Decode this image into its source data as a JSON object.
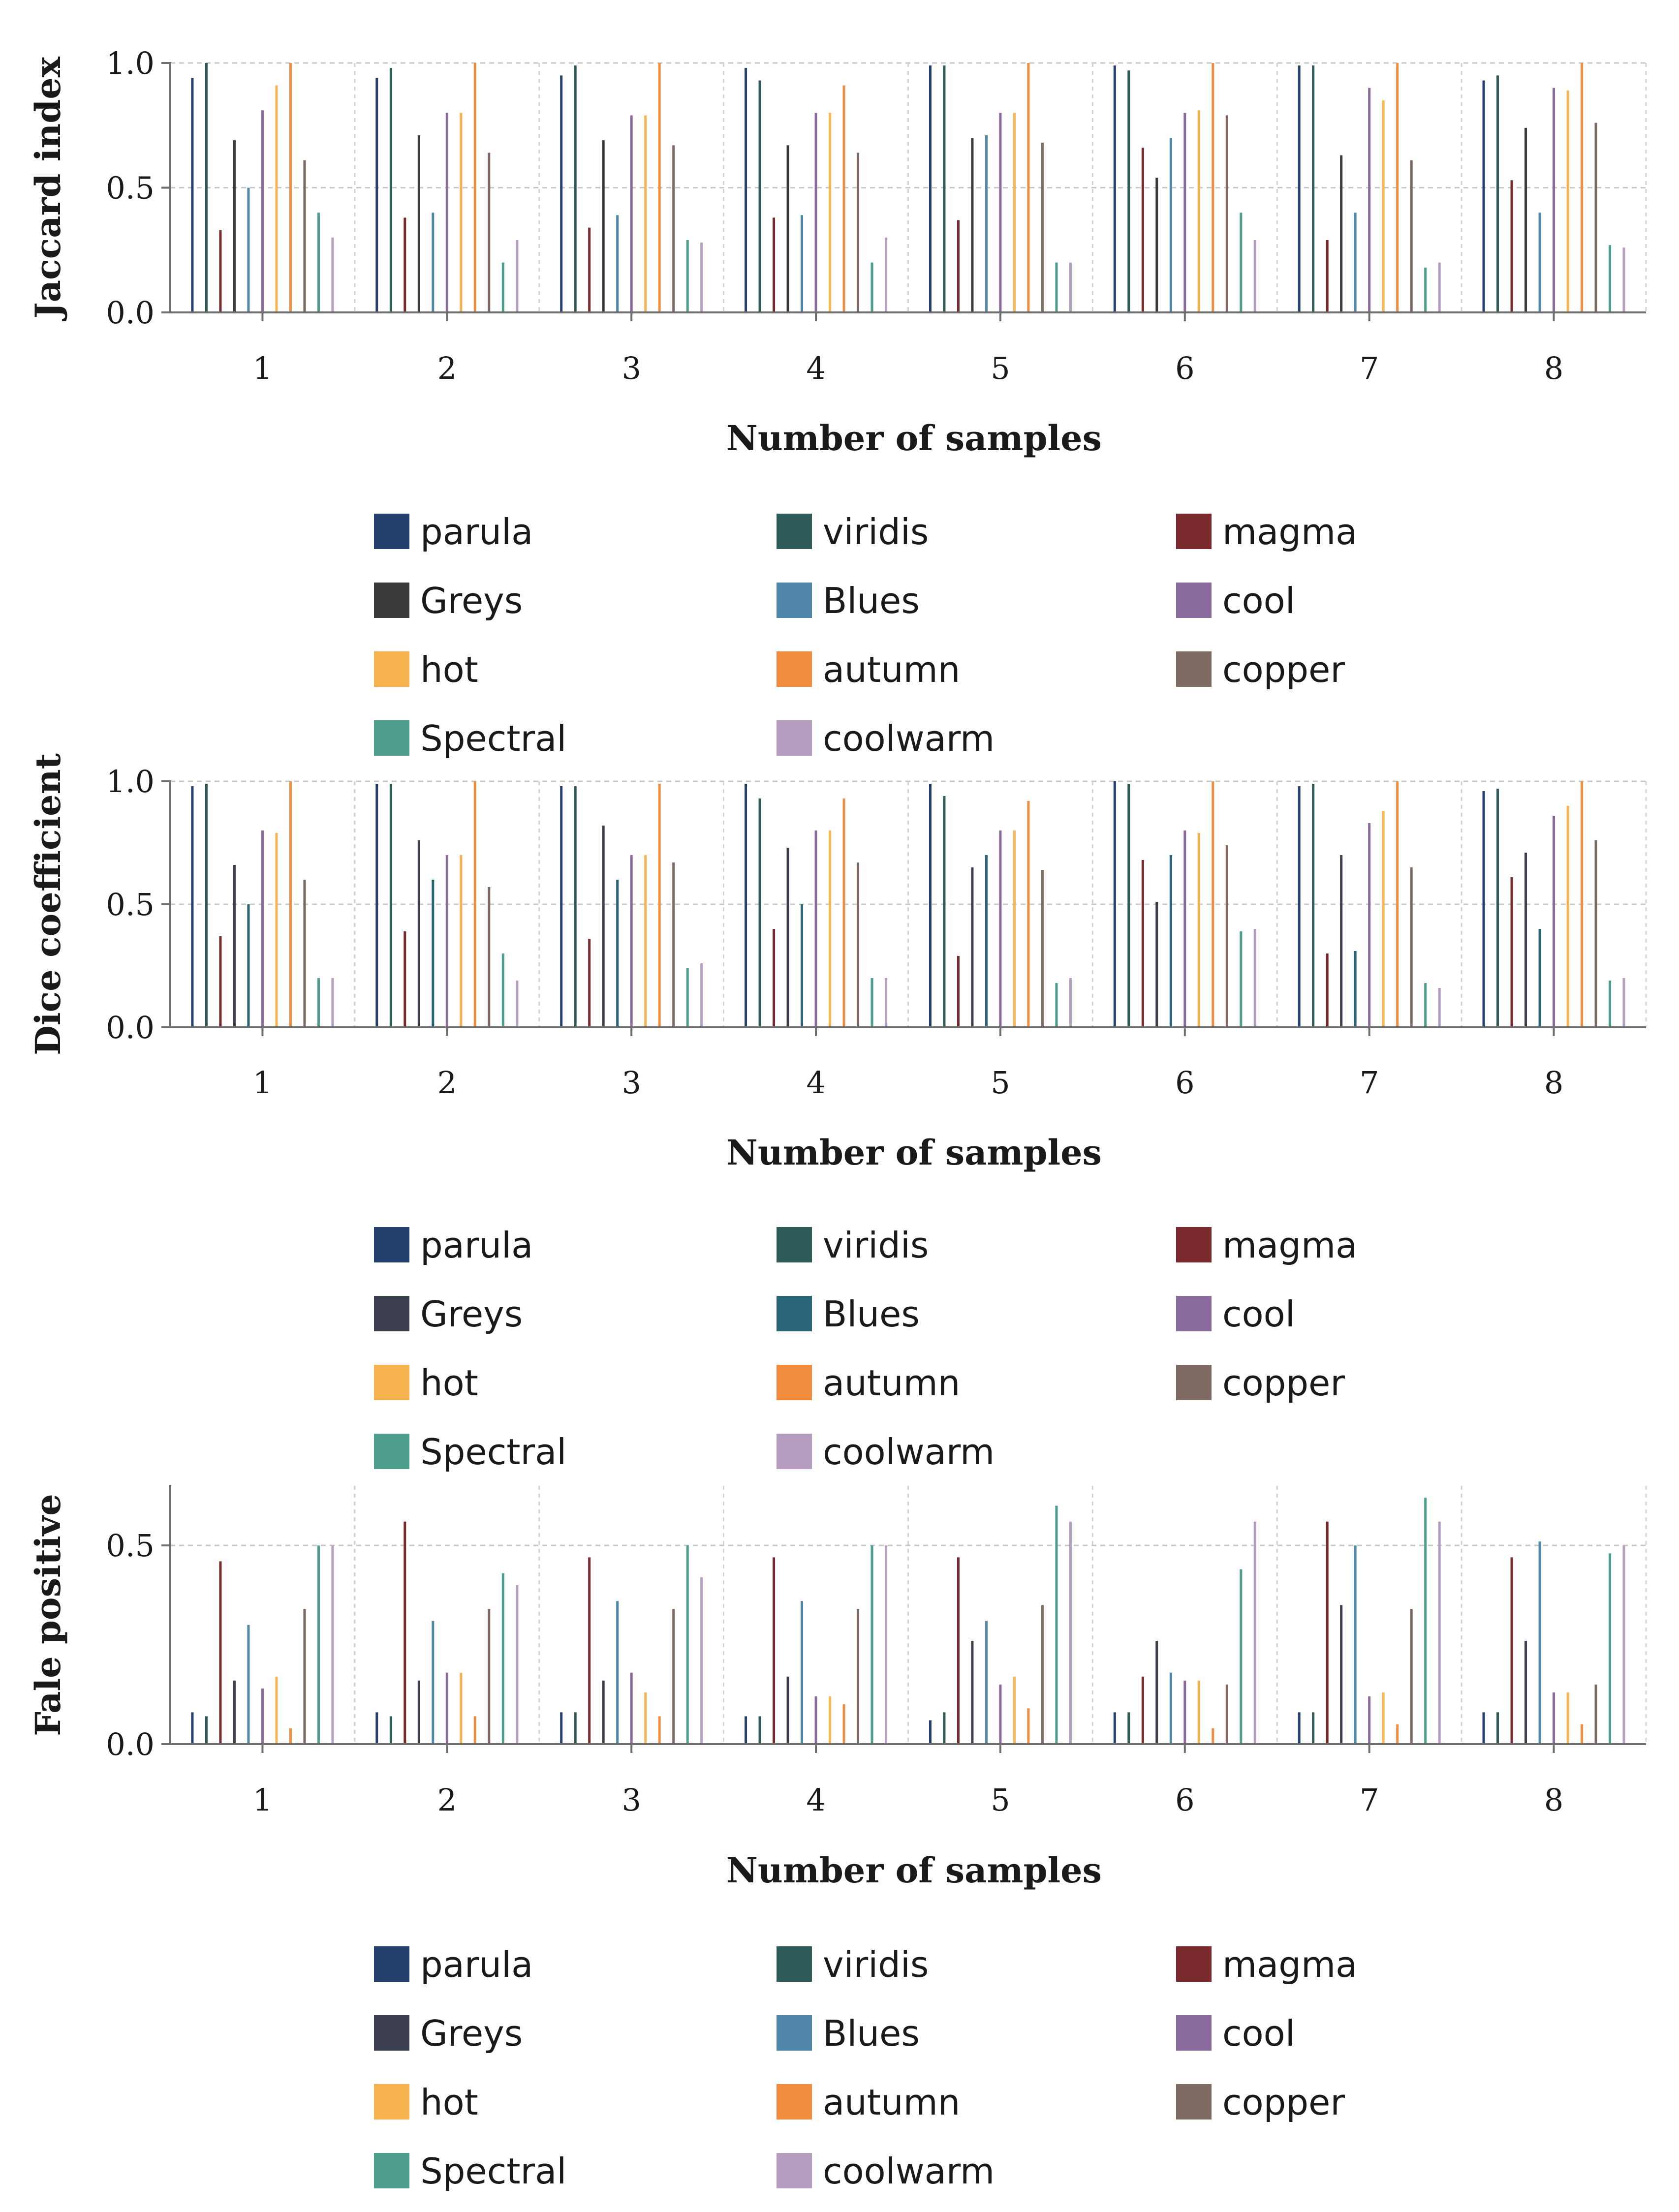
{
  "chart_data": [
    {
      "type": "bar",
      "ylabel": "Jaccard index",
      "xlabel": "Number of samples",
      "categories": [
        "1",
        "2",
        "3",
        "4",
        "5",
        "6",
        "7",
        "8"
      ],
      "ylim": [
        0,
        1.0
      ],
      "yticks": [
        0,
        0.5,
        1.0
      ],
      "ytick_labels": [
        "0.0",
        "0.5",
        "1.0"
      ],
      "grid": true,
      "series": [
        {
          "name": "parula",
          "color": "#24406e",
          "values": [
            0.94,
            0.94,
            0.95,
            0.98,
            0.99,
            0.99,
            0.99,
            0.93
          ]
        },
        {
          "name": "viridis",
          "color": "#2f5c5a",
          "values": [
            1.0,
            0.98,
            0.99,
            0.93,
            0.99,
            0.97,
            0.99,
            0.95
          ]
        },
        {
          "name": "magma",
          "color": "#7a2a2c",
          "values": [
            0.33,
            0.38,
            0.34,
            0.38,
            0.37,
            0.66,
            0.29,
            0.53
          ]
        },
        {
          "name": "Greys",
          "color": "#3a3a3a",
          "values": [
            0.69,
            0.71,
            0.69,
            0.67,
            0.7,
            0.54,
            0.63,
            0.74
          ]
        },
        {
          "name": "Blues",
          "color": "#5087a8",
          "values": [
            0.5,
            0.4,
            0.39,
            0.39,
            0.71,
            0.7,
            0.4,
            0.4
          ]
        },
        {
          "name": "cool",
          "color": "#8a6a9c",
          "values": [
            0.81,
            0.8,
            0.79,
            0.8,
            0.8,
            0.8,
            0.9,
            0.9
          ]
        },
        {
          "name": "hot",
          "color": "#f7b34f",
          "values": [
            0.91,
            0.8,
            0.79,
            0.8,
            0.8,
            0.81,
            0.85,
            0.89
          ]
        },
        {
          "name": "autumn",
          "color": "#f28c3f",
          "values": [
            1.0,
            1.0,
            1.0,
            0.91,
            1.0,
            1.0,
            1.0,
            1.0
          ]
        },
        {
          "name": "copper",
          "color": "#7e6a62",
          "values": [
            0.61,
            0.64,
            0.67,
            0.64,
            0.68,
            0.79,
            0.61,
            0.76
          ]
        },
        {
          "name": "Spectral",
          "color": "#4e9e8e",
          "values": [
            0.4,
            0.2,
            0.29,
            0.2,
            0.2,
            0.4,
            0.18,
            0.27
          ]
        },
        {
          "name": "coolwarm",
          "color": "#b59ec0",
          "values": [
            0.3,
            0.29,
            0.28,
            0.3,
            0.2,
            0.29,
            0.2,
            0.26
          ]
        }
      ]
    },
    {
      "type": "bar",
      "ylabel": "Dice coefficient",
      "xlabel": "Number of samples",
      "categories": [
        "1",
        "2",
        "3",
        "4",
        "5",
        "6",
        "7",
        "8"
      ],
      "ylim": [
        0,
        1.0
      ],
      "yticks": [
        0,
        0.5,
        1.0
      ],
      "ytick_labels": [
        "0.0",
        "0.5",
        "1.0"
      ],
      "grid": true,
      "series": [
        {
          "name": "parula",
          "color": "#24406e",
          "values": [
            0.98,
            0.99,
            0.98,
            0.99,
            0.99,
            1.0,
            0.98,
            0.96
          ]
        },
        {
          "name": "viridis",
          "color": "#2f5c5a",
          "values": [
            0.99,
            0.99,
            0.98,
            0.93,
            0.94,
            0.99,
            0.99,
            0.97
          ]
        },
        {
          "name": "magma",
          "color": "#7a2a2c",
          "values": [
            0.37,
            0.39,
            0.36,
            0.4,
            0.29,
            0.68,
            0.3,
            0.61
          ]
        },
        {
          "name": "Greys",
          "color": "#3c3f4d",
          "values": [
            0.66,
            0.76,
            0.82,
            0.73,
            0.65,
            0.51,
            0.7,
            0.71
          ]
        },
        {
          "name": "Blues",
          "color": "#2a6478",
          "values": [
            0.5,
            0.6,
            0.6,
            0.5,
            0.7,
            0.7,
            0.31,
            0.4
          ]
        },
        {
          "name": "cool",
          "color": "#8a6a9c",
          "values": [
            0.8,
            0.7,
            0.7,
            0.8,
            0.8,
            0.8,
            0.83,
            0.86
          ]
        },
        {
          "name": "hot",
          "color": "#f7b34f",
          "values": [
            0.79,
            0.7,
            0.7,
            0.8,
            0.8,
            0.79,
            0.88,
            0.9
          ]
        },
        {
          "name": "autumn",
          "color": "#f28c3f",
          "values": [
            1.0,
            1.0,
            0.99,
            0.93,
            0.92,
            1.0,
            1.0,
            1.0
          ]
        },
        {
          "name": "copper",
          "color": "#7e6a62",
          "values": [
            0.6,
            0.57,
            0.67,
            0.67,
            0.64,
            0.74,
            0.65,
            0.76
          ]
        },
        {
          "name": "Spectral",
          "color": "#4e9e8e",
          "values": [
            0.2,
            0.3,
            0.24,
            0.2,
            0.18,
            0.39,
            0.18,
            0.19
          ]
        },
        {
          "name": "coolwarm",
          "color": "#b59ec0",
          "values": [
            0.2,
            0.19,
            0.26,
            0.2,
            0.2,
            0.4,
            0.16,
            0.2
          ]
        }
      ]
    },
    {
      "type": "bar",
      "ylabel": "Fale positive",
      "xlabel": "Number of samples",
      "categories": [
        "1",
        "2",
        "3",
        "4",
        "5",
        "6",
        "7",
        "8"
      ],
      "ylim": [
        0,
        0.65
      ],
      "yticks": [
        0,
        0.5
      ],
      "ytick_labels": [
        "0.0",
        "0.5"
      ],
      "grid": true,
      "series": [
        {
          "name": "parula",
          "color": "#24406e",
          "values": [
            0.08,
            0.08,
            0.08,
            0.07,
            0.06,
            0.08,
            0.08,
            0.08
          ]
        },
        {
          "name": "viridis",
          "color": "#2f5c5a",
          "values": [
            0.07,
            0.07,
            0.08,
            0.07,
            0.08,
            0.08,
            0.08,
            0.08
          ]
        },
        {
          "name": "magma",
          "color": "#7a2a2c",
          "values": [
            0.46,
            0.56,
            0.47,
            0.47,
            0.47,
            0.17,
            0.56,
            0.47
          ]
        },
        {
          "name": "Greys",
          "color": "#3c3f4d",
          "values": [
            0.16,
            0.16,
            0.16,
            0.17,
            0.26,
            0.26,
            0.35,
            0.26
          ]
        },
        {
          "name": "Blues",
          "color": "#5087a8",
          "values": [
            0.3,
            0.31,
            0.36,
            0.36,
            0.31,
            0.18,
            0.5,
            0.51
          ]
        },
        {
          "name": "cool",
          "color": "#8a6a9c",
          "values": [
            0.14,
            0.18,
            0.18,
            0.12,
            0.15,
            0.16,
            0.12,
            0.13
          ]
        },
        {
          "name": "hot",
          "color": "#f7b34f",
          "values": [
            0.17,
            0.18,
            0.13,
            0.12,
            0.17,
            0.16,
            0.13,
            0.13
          ]
        },
        {
          "name": "autumn",
          "color": "#f28c3f",
          "values": [
            0.04,
            0.07,
            0.07,
            0.1,
            0.09,
            0.04,
            0.05,
            0.05
          ]
        },
        {
          "name": "copper",
          "color": "#7e6a62",
          "values": [
            0.34,
            0.34,
            0.34,
            0.34,
            0.35,
            0.15,
            0.34,
            0.15
          ]
        },
        {
          "name": "Spectral",
          "color": "#4e9e8e",
          "values": [
            0.5,
            0.43,
            0.5,
            0.5,
            0.6,
            0.44,
            0.62,
            0.48
          ]
        },
        {
          "name": "coolwarm",
          "color": "#b59ec0",
          "values": [
            0.5,
            0.4,
            0.42,
            0.5,
            0.56,
            0.56,
            0.56,
            0.5
          ]
        }
      ]
    }
  ]
}
